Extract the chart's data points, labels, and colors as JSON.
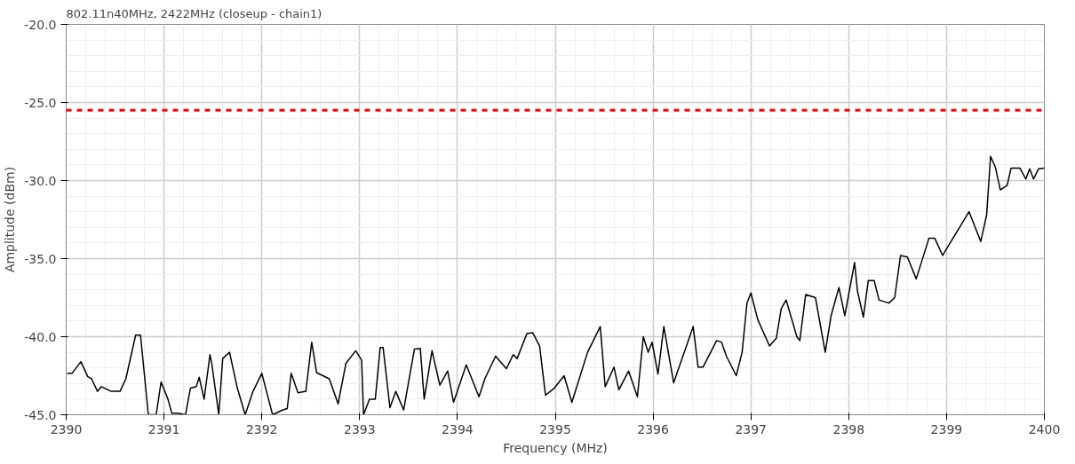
{
  "chart_data": {
    "type": "line",
    "title": "802.11n40MHz, 2422MHz (closeup - chain1)",
    "xlabel": "Frequency (MHz)",
    "ylabel": "Amplitude (dBm)",
    "xlim": [
      2390,
      2400
    ],
    "ylim": [
      -45,
      -20
    ],
    "xticks": [
      2390,
      2391,
      2392,
      2393,
      2394,
      2395,
      2396,
      2397,
      2398,
      2399,
      2400
    ],
    "yticks": [
      {
        "value": -45,
        "label": "-45.0"
      },
      {
        "value": -40,
        "label": "-40.0"
      },
      {
        "value": -35,
        "label": "-35.0"
      },
      {
        "value": -30,
        "label": "-30.0"
      },
      {
        "value": -25,
        "label": "-25.0"
      },
      {
        "value": -20,
        "label": "-20.0"
      }
    ],
    "grid": true,
    "line_style": "solid",
    "marker": "none",
    "ref_lines": [
      {
        "axis": "y",
        "value": -25.5,
        "label": null,
        "color": "#ff0000",
        "line_style": "dashed"
      }
    ],
    "x": [
      2390.01,
      2390.06,
      2390.15,
      2390.22,
      2390.26,
      2390.32,
      2390.36,
      2390.46,
      2390.55,
      2390.61,
      2390.71,
      2390.76,
      2390.84,
      2390.92,
      2390.97,
      2391.04,
      2391.08,
      2391.14,
      2391.22,
      2391.27,
      2391.33,
      2391.36,
      2391.41,
      2391.47,
      2391.49,
      2391.56,
      2391.6,
      2391.67,
      2391.75,
      2391.83,
      2391.91,
      2392.0,
      2392.11,
      2392.21,
      2392.26,
      2392.3,
      2392.37,
      2392.45,
      2392.51,
      2392.56,
      2392.69,
      2392.78,
      2392.86,
      2392.96,
      2393.02,
      2393.04,
      2393.1,
      2393.16,
      2393.21,
      2393.24,
      2393.31,
      2393.37,
      2393.45,
      2393.56,
      2393.62,
      2393.66,
      2393.74,
      2393.82,
      2393.9,
      2393.96,
      2394.09,
      2394.22,
      2394.28,
      2394.39,
      2394.5,
      2394.57,
      2394.61,
      2394.71,
      2394.77,
      2394.84,
      2394.9,
      2394.99,
      2395.09,
      2395.17,
      2395.33,
      2395.46,
      2395.51,
      2395.6,
      2395.65,
      2395.75,
      2395.84,
      2395.9,
      2395.95,
      2395.99,
      2396.05,
      2396.11,
      2396.21,
      2396.33,
      2396.41,
      2396.46,
      2396.51,
      2396.65,
      2396.7,
      2396.75,
      2396.85,
      2396.91,
      2396.96,
      2397.0,
      2397.07,
      2397.19,
      2397.26,
      2397.31,
      2397.36,
      2397.47,
      2397.5,
      2397.56,
      2397.66,
      2397.76,
      2397.82,
      2397.9,
      2397.96,
      2398.06,
      2398.09,
      2398.15,
      2398.2,
      2398.26,
      2398.31,
      2398.41,
      2398.47,
      2398.53,
      2398.6,
      2398.69,
      2398.82,
      2398.88,
      2398.96,
      2399.09,
      2399.23,
      2399.35,
      2399.41,
      2399.45,
      2399.5,
      2399.55,
      2399.62,
      2399.66,
      2399.75,
      2399.81,
      2399.85,
      2399.89,
      2399.94,
      2400.0
    ],
    "series": [
      {
        "color": "#000000",
        "values": [
          -42.35,
          -42.35,
          -41.6,
          -42.55,
          -42.7,
          -43.5,
          -43.2,
          -43.5,
          -43.5,
          -42.7,
          -39.9,
          -39.9,
          -45,
          -45,
          -42.9,
          -44.0,
          -44.9,
          -44.9,
          -45,
          -43.3,
          -43.2,
          -42.6,
          -44.0,
          -41.15,
          -41.8,
          -45,
          -41.4,
          -41.0,
          -43.3,
          -45,
          -43.5,
          -42.35,
          -45,
          -44.7,
          -44.6,
          -42.35,
          -43.6,
          -43.5,
          -40.35,
          -42.3,
          -42.7,
          -44.3,
          -41.7,
          -40.9,
          -41.5,
          -45,
          -44.0,
          -44.0,
          -40.7,
          -40.7,
          -44.55,
          -43.5,
          -44.7,
          -40.8,
          -40.75,
          -44.0,
          -40.9,
          -43.1,
          -42.2,
          -44.2,
          -41.8,
          -43.85,
          -42.7,
          -41.25,
          -42.05,
          -41.15,
          -41.4,
          -39.8,
          -39.75,
          -40.6,
          -43.75,
          -43.3,
          -42.5,
          -44.2,
          -41.0,
          -39.35,
          -43.2,
          -41.95,
          -43.4,
          -42.2,
          -43.85,
          -40.0,
          -41.0,
          -40.35,
          -42.4,
          -39.35,
          -42.95,
          -40.8,
          -39.35,
          -41.95,
          -41.95,
          -40.25,
          -40.35,
          -41.25,
          -42.5,
          -41.0,
          -37.85,
          -37.2,
          -38.9,
          -40.6,
          -40.1,
          -38.2,
          -37.65,
          -40.0,
          -40.25,
          -37.3,
          -37.5,
          -41.0,
          -38.65,
          -36.85,
          -38.65,
          -35.25,
          -37.1,
          -38.75,
          -36.4,
          -36.4,
          -37.65,
          -37.85,
          -37.5,
          -34.8,
          -34.9,
          -36.3,
          -33.7,
          -33.7,
          -34.8,
          -33.45,
          -32.0,
          -33.9,
          -32.2,
          -28.45,
          -29.15,
          -30.6,
          -30.3,
          -29.2,
          -29.2,
          -29.9,
          -29.25,
          -29.9,
          -29.25,
          -29.2
        ]
      }
    ]
  }
}
